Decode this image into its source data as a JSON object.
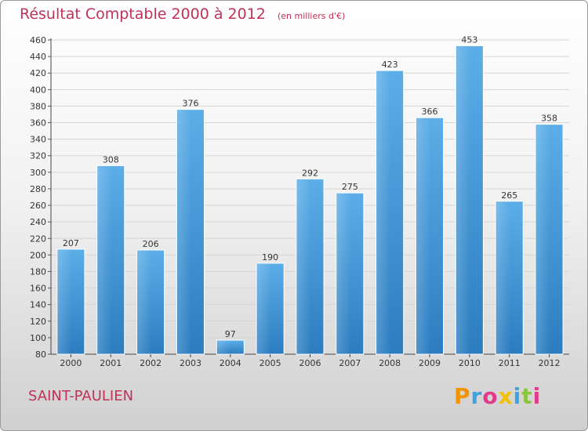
{
  "title": "Résultat Comptable 2000 à 2012",
  "subtitle": "(en milliers d'€)",
  "city": "SAINT-PAULIEN",
  "logo": "Proxiti",
  "colors": {
    "bar_light": "#5caee8",
    "bar_dark": "#2b7dc0",
    "title": "#c0325a"
  },
  "chart_data": {
    "type": "bar",
    "title": "Résultat Comptable 2000 à 2012",
    "subtitle": "(en milliers d'€)",
    "categories": [
      "2000",
      "2001",
      "2002",
      "2003",
      "2004",
      "2005",
      "2006",
      "2007",
      "2008",
      "2009",
      "2010",
      "2011",
      "2012"
    ],
    "values": [
      207,
      308,
      206,
      376,
      97,
      190,
      292,
      275,
      423,
      366,
      453,
      265,
      358
    ],
    "ylim": [
      80,
      460
    ],
    "yticks": [
      80,
      100,
      120,
      140,
      160,
      180,
      200,
      220,
      240,
      260,
      280,
      300,
      320,
      340,
      360,
      380,
      400,
      420,
      440,
      460
    ],
    "grid": true,
    "legend": "none"
  }
}
